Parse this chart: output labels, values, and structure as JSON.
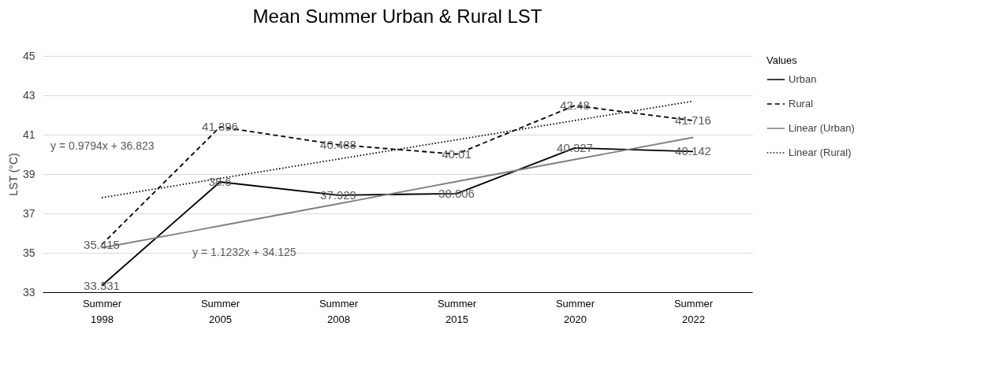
{
  "chart_data": {
    "type": "line",
    "title": "Mean Summer Urban & Rural LST",
    "ylabel": "LST (°C)",
    "legend_title": "Values",
    "legend": "right",
    "grid": "y",
    "marker": "none",
    "categories": [
      "Summer 1998",
      "Summer 2005",
      "Summer 2008",
      "Summer 2015",
      "Summer 2020",
      "Summer 2022"
    ],
    "ylim": [
      33,
      45
    ],
    "yticks": [
      33,
      35,
      37,
      39,
      41,
      43,
      45
    ],
    "series": [
      {
        "name": "Urban",
        "color": "#000000",
        "line_style": "solid",
        "values": [
          33.331,
          38.6,
          37.929,
          38.006,
          40.327,
          40.142
        ],
        "value_labels": [
          "33.331",
          "38.6",
          "37.929",
          "38.006",
          "40.327",
          "40.142"
        ]
      },
      {
        "name": "Rural",
        "color": "#000000",
        "line_style": "dashed",
        "values": [
          35.415,
          41.396,
          40.488,
          40.01,
          42.48,
          41.716
        ],
        "value_labels": [
          "35.415",
          "41.396",
          "40.488",
          "40.01",
          "42.48",
          "41.716"
        ]
      },
      {
        "name": "Linear (Urban)",
        "color": "#7f7f7f",
        "line_style": "solid",
        "values": [
          35.25,
          36.37,
          37.49,
          38.62,
          39.74,
          40.86
        ]
      },
      {
        "name": "Linear (Rural)",
        "color": "#000000",
        "line_style": "dotted",
        "values": [
          37.8,
          38.78,
          39.76,
          40.74,
          41.72,
          42.7
        ]
      }
    ],
    "annotations": [
      "y = 0.9794x + 36.823",
      "y = 1.1232x + 34.125"
    ]
  }
}
